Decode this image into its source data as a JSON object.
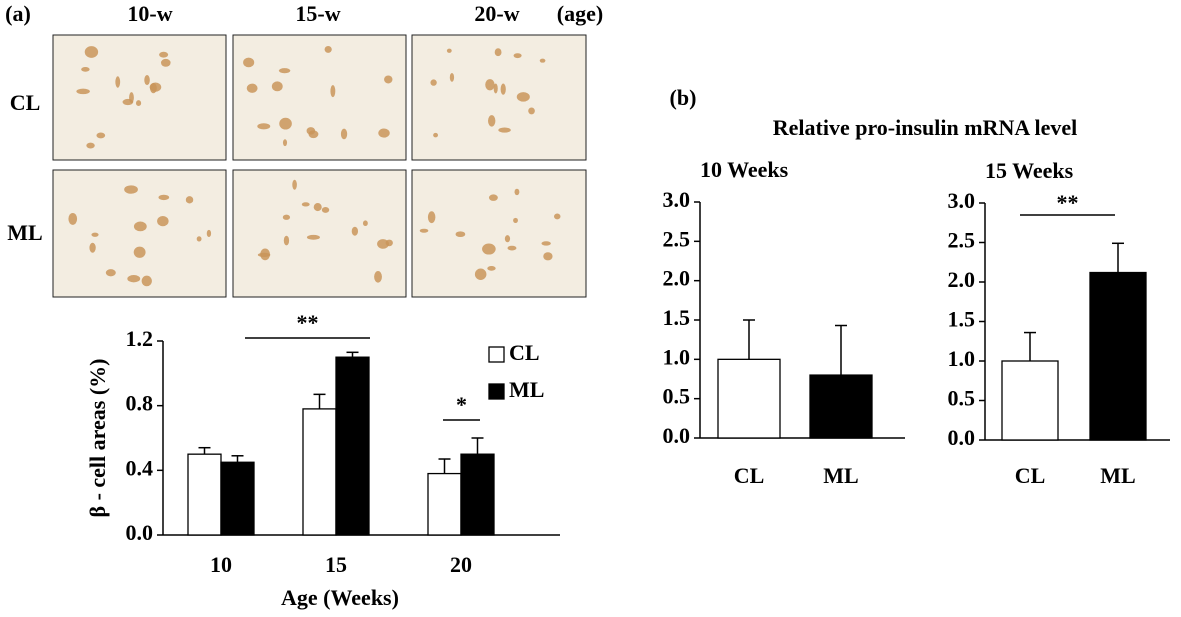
{
  "panel_a": {
    "label": "(a)",
    "columns": [
      "10-w",
      "15-w",
      "20-w"
    ],
    "age_label": "(age)",
    "rows": [
      "CL",
      "ML"
    ]
  },
  "panel_b": {
    "label": "(b)",
    "title": "Relative pro-insulin mRNA level"
  },
  "chart_data": [
    {
      "type": "grouped-bar",
      "ylabel": "β - cell areas (%)",
      "xlabel": "Age (Weeks)",
      "categories": [
        "10",
        "15",
        "20"
      ],
      "series": [
        {
          "name": "CL",
          "color": "#ffffff",
          "values": [
            0.5,
            0.78,
            0.38
          ],
          "errors": [
            0.04,
            0.09,
            0.09
          ]
        },
        {
          "name": "ML",
          "color": "#000000",
          "values": [
            0.45,
            1.1,
            0.5
          ],
          "errors": [
            0.04,
            0.03,
            0.1
          ]
        }
      ],
      "ylim": [
        0,
        1.2
      ],
      "yticks": [
        {
          "value": 0,
          "label": "0.0"
        },
        0.4,
        0.8,
        1.2
      ],
      "legend": "upper right",
      "annotations": [
        "**",
        "*"
      ]
    },
    {
      "type": "bar",
      "title": "10 Weeks",
      "categories": [
        "CL",
        "ML"
      ],
      "values": [
        1.0,
        0.8
      ],
      "errors": [
        0.5,
        0.63
      ],
      "colors": [
        "#ffffff",
        "#000000"
      ],
      "ylim": [
        0,
        3
      ],
      "yticks": [
        {
          "value": 0,
          "label": "0.0"
        },
        0.5,
        {
          "value": 1,
          "label": "1.0"
        },
        1.5,
        {
          "value": 2,
          "label": "2.0"
        },
        2.5,
        {
          "value": 3,
          "label": "3.0"
        }
      ],
      "annotations": []
    },
    {
      "type": "bar",
      "title": "15 Weeks",
      "categories": [
        "CL",
        "ML"
      ],
      "values": [
        1.0,
        2.12
      ],
      "errors": [
        0.36,
        0.37
      ],
      "colors": [
        "#ffffff",
        "#000000"
      ],
      "ylim": [
        0,
        3
      ],
      "yticks": [
        {
          "value": 0,
          "label": "0.0"
        },
        0.5,
        {
          "value": 1,
          "label": "1.0"
        },
        1.5,
        {
          "value": 2,
          "label": "2.0"
        },
        2.5,
        {
          "value": 3,
          "label": "3.0"
        }
      ],
      "annotations": [
        "**"
      ]
    }
  ]
}
